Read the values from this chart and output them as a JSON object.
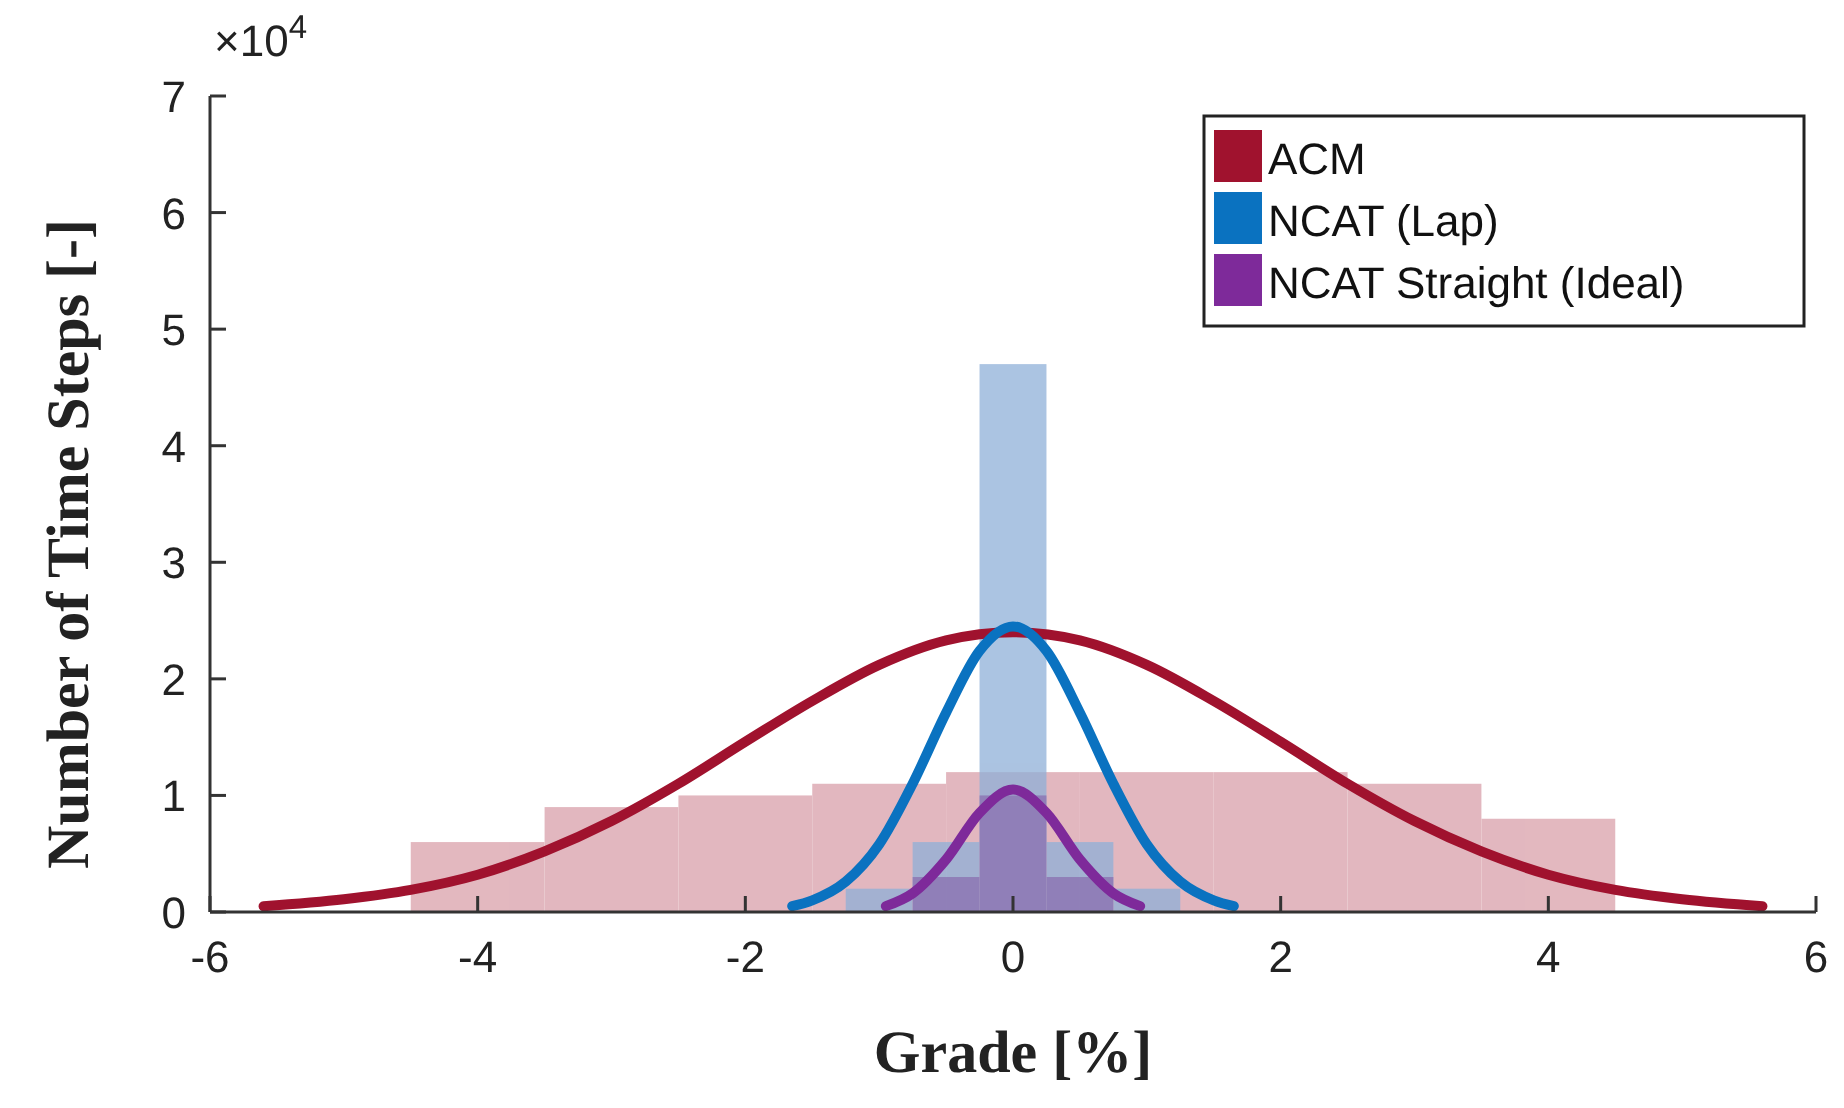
{
  "chart_data": {
    "type": "line",
    "xlabel": "Grade [%]",
    "ylabel": "Number of Time Steps [-]",
    "annotations": [
      "×10$^{4}$"
    ],
    "xlim": [
      -6,
      6
    ],
    "xticks": [
      -6,
      -4,
      -2,
      0,
      2,
      4,
      6
    ],
    "ylim": [
      0,
      7
    ],
    "yticks": [
      0,
      1,
      2,
      3,
      4,
      5,
      6,
      7
    ],
    "grid": false,
    "legend": "top right",
    "marker": "none",
    "line_style": "solid",
    "series": [
      {
        "type": "histogram",
        "color": "#d9a0aa",
        "bins": [
          -4.5,
          -3.5,
          -2.5,
          -1.5,
          -0.5,
          0.5,
          1.5,
          2.5,
          3.5,
          4.5
        ],
        "values": [
          0.6,
          0.9,
          1.0,
          1.1,
          1.2,
          1.2,
          1.2,
          1.1,
          0.8
        ]
      },
      {
        "type": "histogram",
        "color": "#8fb0d8",
        "bins": [
          -1.25,
          -0.75,
          -0.25,
          0.25,
          0.75,
          1.25
        ],
        "values": [
          0.2,
          0.6,
          4.7,
          0.6,
          0.2
        ]
      },
      {
        "type": "histogram",
        "color": "#8a6fb0",
        "bins": [
          -0.75,
          -0.25,
          0.25,
          0.75
        ],
        "values": [
          0.3,
          1.0,
          0.3
        ]
      },
      {
        "name": "ACM",
        "color": "#a0122e",
        "x": [
          -5.6,
          -5,
          -4.5,
          -4,
          -3.5,
          -3,
          -2.5,
          -2,
          -1.5,
          -1,
          -0.5,
          0,
          0.5,
          1,
          1.5,
          2,
          2.5,
          3,
          3.5,
          4,
          4.5,
          5,
          5.6
        ],
        "values": [
          0.05,
          0.11,
          0.19,
          0.32,
          0.52,
          0.78,
          1.1,
          1.46,
          1.81,
          2.12,
          2.33,
          2.4,
          2.33,
          2.12,
          1.81,
          1.46,
          1.1,
          0.78,
          0.52,
          0.32,
          0.19,
          0.11,
          0.05
        ]
      },
      {
        "name": "NCAT (Lap)",
        "color": "#0a72c0",
        "x": [
          -1.65,
          -1.5,
          -1.25,
          -1,
          -0.75,
          -0.5,
          -0.25,
          0,
          0.25,
          0.5,
          0.75,
          1,
          1.25,
          1.5,
          1.65
        ],
        "values": [
          0.05,
          0.1,
          0.26,
          0.58,
          1.1,
          1.71,
          2.24,
          2.45,
          2.24,
          1.71,
          1.1,
          0.58,
          0.26,
          0.1,
          0.05
        ]
      },
      {
        "name": "NCAT Straight (Ideal)",
        "color": "#7e2a9a",
        "x": [
          -0.95,
          -0.75,
          -0.5,
          -0.25,
          0,
          0.25,
          0.5,
          0.75,
          0.95
        ],
        "values": [
          0.05,
          0.16,
          0.45,
          0.85,
          1.05,
          0.85,
          0.45,
          0.16,
          0.05
        ]
      }
    ]
  }
}
